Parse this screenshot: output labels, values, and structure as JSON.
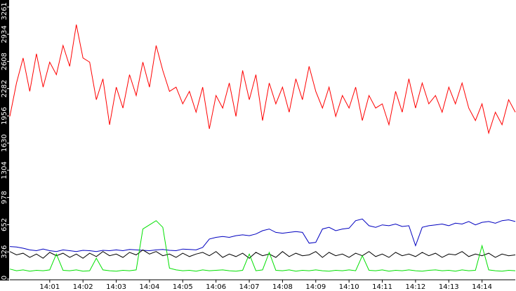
{
  "chart_data": {
    "type": "line",
    "categories": [
      null,
      null,
      null,
      null,
      null,
      null,
      "14:01",
      null,
      null,
      null,
      null,
      "14:02",
      null,
      null,
      null,
      null,
      "14:03",
      null,
      null,
      null,
      null,
      "14:04",
      null,
      null,
      null,
      null,
      "14:05",
      null,
      null,
      null,
      null,
      "14:06",
      null,
      null,
      null,
      null,
      "14:07",
      null,
      null,
      null,
      null,
      "14:08",
      null,
      null,
      null,
      null,
      "14:09",
      null,
      null,
      null,
      null,
      "14:10",
      null,
      null,
      null,
      null,
      "14:11",
      null,
      null,
      null,
      null,
      "14:12",
      null,
      null,
      null,
      null,
      "14:13",
      null,
      null,
      null,
      null,
      "14:14",
      null,
      null,
      null,
      null,
      null
    ],
    "series": [
      {
        "color": "#ff0000",
        "values": [
          1950,
          2350,
          2650,
          2250,
          2700,
          2300,
          2600,
          2450,
          2800,
          2550,
          3050,
          2650,
          2600,
          2150,
          2400,
          1850,
          2300,
          2050,
          2450,
          2200,
          2600,
          2300,
          2800,
          2500,
          2250,
          2300,
          2100,
          2250,
          2000,
          2300,
          1800,
          2200,
          2050,
          2350,
          1950,
          2500,
          2150,
          2450,
          1900,
          2350,
          2100,
          2300,
          2000,
          2400,
          2150,
          2550,
          2250,
          2050,
          2300,
          1950,
          2200,
          2050,
          2300,
          1900,
          2200,
          2050,
          2100,
          1850,
          2250,
          2000,
          2400,
          2050,
          2350,
          2100,
          2200,
          2000,
          2300,
          2100,
          2350,
          2050,
          1900,
          2100,
          1750,
          2000,
          1850,
          2150,
          2000
        ]
      },
      {
        "color": "#0000c0",
        "values": [
          390,
          385,
          370,
          350,
          340,
          360,
          340,
          330,
          350,
          340,
          330,
          345,
          340,
          330,
          345,
          340,
          350,
          340,
          355,
          350,
          345,
          340,
          350,
          355,
          345,
          340,
          360,
          355,
          350,
          380,
          480,
          500,
          510,
          500,
          520,
          530,
          520,
          540,
          580,
          600,
          560,
          550,
          560,
          570,
          560,
          430,
          440,
          600,
          620,
          580,
          600,
          610,
          700,
          720,
          640,
          620,
          650,
          640,
          660,
          630,
          640,
          400,
          620,
          640,
          650,
          660,
          640,
          670,
          660,
          690,
          650,
          680,
          690,
          670,
          700,
          710,
          690
        ]
      },
      {
        "color": "#000000",
        "values": [
          330,
          290,
          310,
          260,
          300,
          250,
          320,
          280,
          310,
          260,
          300,
          250,
          310,
          270,
          330,
          280,
          300,
          260,
          320,
          290,
          350,
          300,
          330,
          280,
          300,
          260,
          310,
          270,
          300,
          320,
          280,
          330,
          260,
          300,
          270,
          310,
          250,
          320,
          280,
          300,
          260,
          330,
          270,
          310,
          280,
          290,
          330,
          260,
          320,
          280,
          300,
          260,
          310,
          280,
          330,
          270,
          300,
          260,
          320,
          280,
          300,
          270,
          320,
          280,
          310,
          260,
          300,
          290,
          330,
          270,
          300,
          280,
          310,
          260,
          300,
          280,
          290
        ]
      },
      {
        "color": "#00e000",
        "values": [
          120,
          100,
          110,
          95,
          105,
          100,
          110,
          300,
          105,
          100,
          110,
          95,
          100,
          250,
          110,
          100,
          95,
          105,
          100,
          110,
          600,
          650,
          700,
          620,
          130,
          110,
          100,
          105,
          95,
          110,
          100,
          105,
          110,
          100,
          95,
          105,
          300,
          100,
          110,
          320,
          105,
          100,
          110,
          95,
          105,
          100,
          110,
          100,
          95,
          105,
          100,
          110,
          100,
          280,
          105,
          100,
          110,
          95,
          105,
          100,
          110,
          100,
          95,
          105,
          110,
          100,
          105,
          95,
          110,
          100,
          105,
          400,
          110,
          100,
          95,
          105,
          100
        ]
      }
    ],
    "ylim": [
      0,
      3261
    ],
    "yticks": [
      0,
      326,
      652,
      978,
      1304,
      1630,
      1956,
      2282,
      2608,
      2934,
      3261
    ]
  }
}
